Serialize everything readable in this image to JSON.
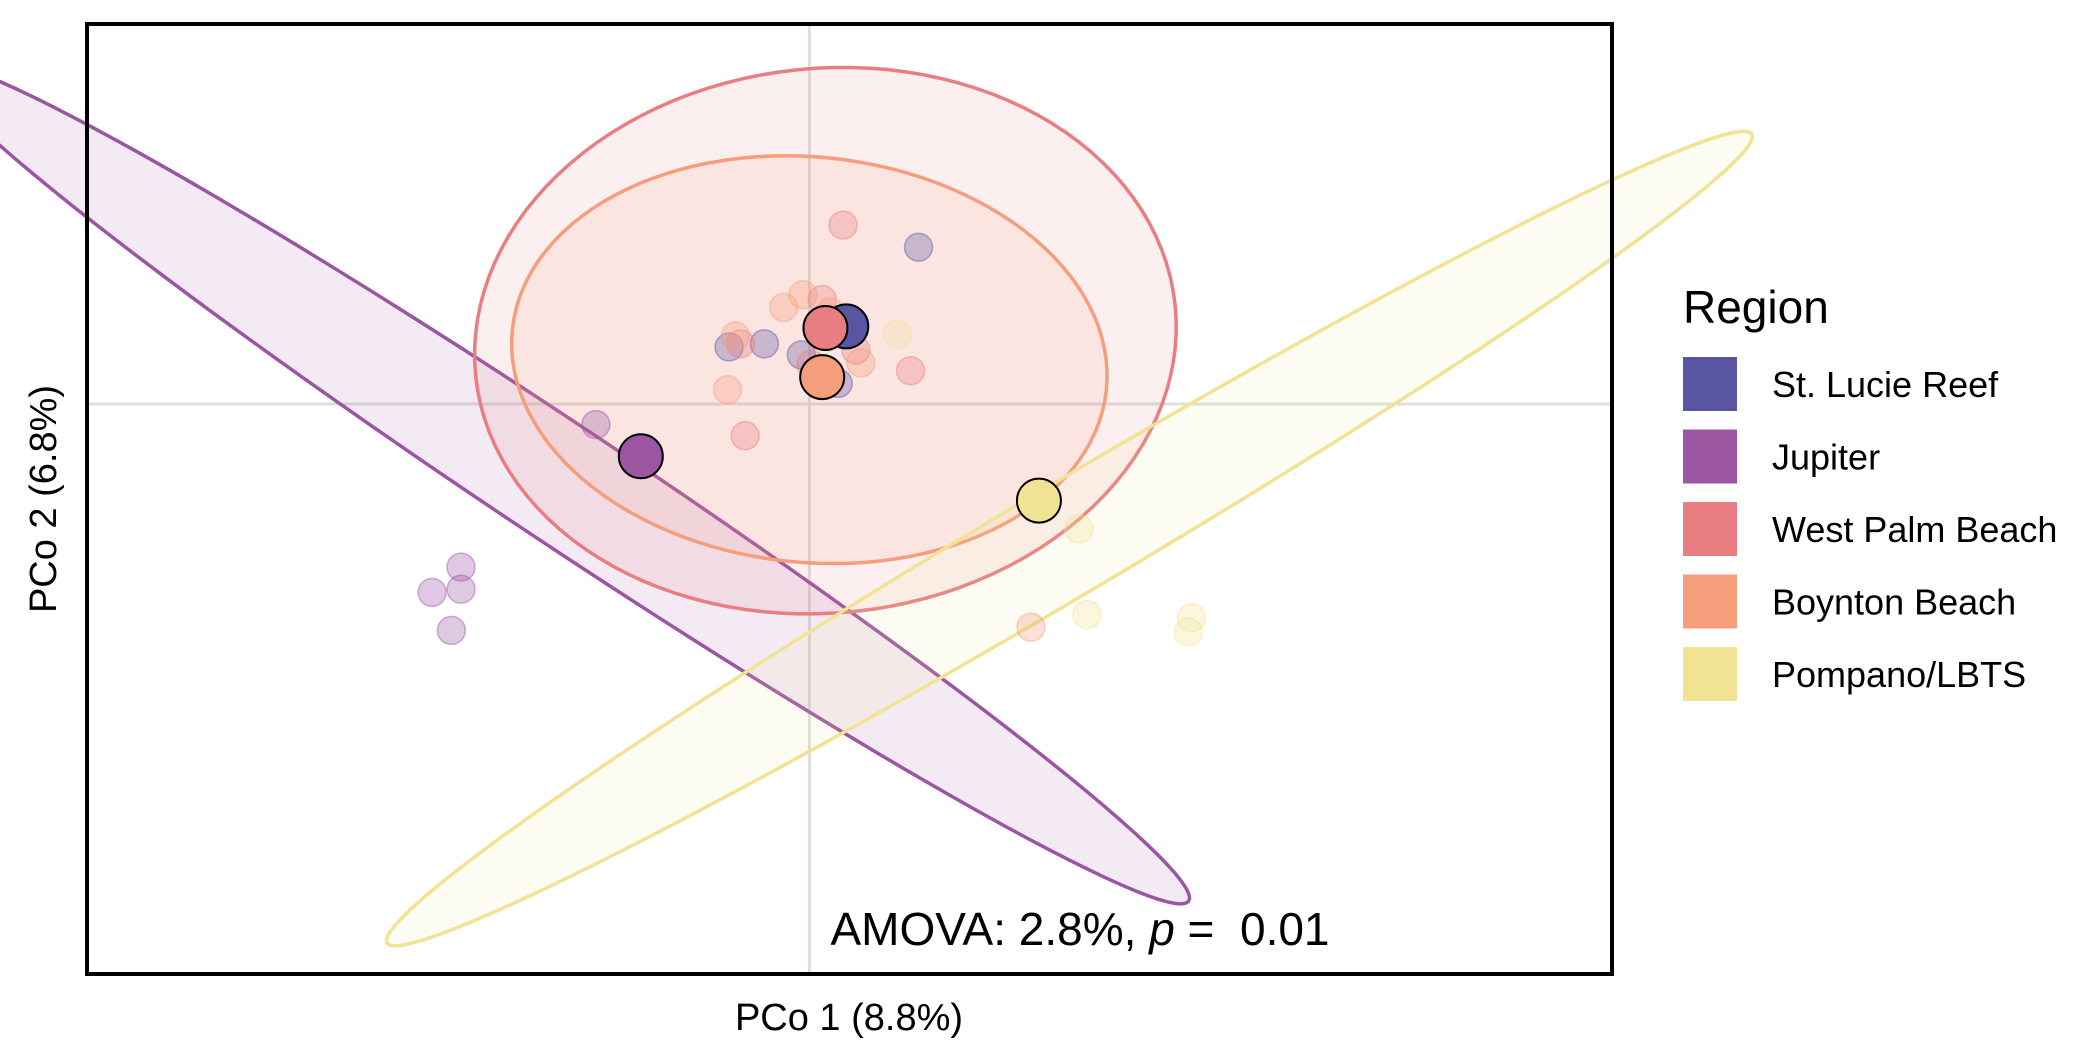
{
  "chart_data": {
    "type": "scatter",
    "title": "",
    "xlabel": "PCo 1 (8.8%)",
    "ylabel": "PCo 2 (6.8%)",
    "xlim": [
      -0.45,
      0.5
    ],
    "ylim": [
      -0.36,
      0.24
    ],
    "grid": {
      "zero_lines": true,
      "major": false
    },
    "legend": {
      "title": "Region",
      "placement": "right"
    },
    "annotation": {
      "prefix": "AMOVA: 2.8%, ",
      "p_symbol": "p",
      "equals": " =  0.01"
    },
    "series": [
      {
        "name": "St. Lucie Reef",
        "color": "#5a55a3",
        "centroid": {
          "x": 0.023,
          "y": 0.049
        },
        "points": [
          {
            "x": 0.068,
            "y": 0.099
          },
          {
            "x": -0.028,
            "y": 0.038
          },
          {
            "x": -0.05,
            "y": 0.036
          },
          {
            "x": -0.005,
            "y": 0.031
          },
          {
            "x": 0.012,
            "y": 0.047
          },
          {
            "x": 0.018,
            "y": 0.013
          }
        ],
        "ellipse": null
      },
      {
        "name": "Jupiter",
        "color": "#9b55a3",
        "centroid": {
          "x": -0.105,
          "y": -0.033
        },
        "points": [
          {
            "x": -0.133,
            "y": -0.013
          },
          {
            "x": -0.217,
            "y": -0.103
          },
          {
            "x": -0.235,
            "y": -0.119
          },
          {
            "x": -0.217,
            "y": -0.117
          },
          {
            "x": -0.223,
            "y": -0.143
          }
        ],
        "ellipse": {
          "cx": -0.155,
          "cy": -0.05,
          "rx": 0.472,
          "ry": 0.037,
          "angle_deg": -34
        }
      },
      {
        "name": "West Palm Beach",
        "color": "#e87d82",
        "centroid": {
          "x": 0.01,
          "y": 0.048
        },
        "points": [
          {
            "x": 0.021,
            "y": 0.113
          },
          {
            "x": -0.043,
            "y": 0.038
          },
          {
            "x": 0.063,
            "y": 0.021
          },
          {
            "x": -0.04,
            "y": -0.02
          },
          {
            "x": 0.029,
            "y": 0.034
          },
          {
            "x": 0.008,
            "y": 0.066
          },
          {
            "x": 0.001,
            "y": 0.025
          }
        ],
        "ellipse": {
          "cx": 0.01,
          "cy": 0.04,
          "rx": 0.172,
          "ry": 0.219,
          "angle_deg": -84
        }
      },
      {
        "name": "Boynton Beach",
        "color": "#f59e7c",
        "centroid": {
          "x": 0.008,
          "y": 0.017
        },
        "points": [
          {
            "x": -0.016,
            "y": 0.061
          },
          {
            "x": -0.004,
            "y": 0.069
          },
          {
            "x": -0.046,
            "y": 0.043
          },
          {
            "x": -0.051,
            "y": 0.009
          },
          {
            "x": 0.032,
            "y": 0.026
          },
          {
            "x": 0.013,
            "y": 0.058
          },
          {
            "x": 0.138,
            "y": -0.141
          }
        ],
        "ellipse": {
          "cx": 0.0,
          "cy": 0.028,
          "rx": 0.186,
          "ry": 0.128,
          "angle_deg": -6
        }
      },
      {
        "name": "Pompano/LBTS",
        "color": "#f2e394",
        "centroid": {
          "x": 0.143,
          "y": -0.061
        },
        "points": [
          {
            "x": 0.168,
            "y": -0.079
          },
          {
            "x": 0.173,
            "y": -0.133
          },
          {
            "x": 0.238,
            "y": -0.135
          },
          {
            "x": 0.236,
            "y": -0.144
          },
          {
            "x": 0.055,
            "y": 0.044
          }
        ],
        "ellipse": {
          "cx": 0.162,
          "cy": -0.085,
          "rx": 0.496,
          "ry": 0.035,
          "angle_deg": 31
        }
      }
    ]
  }
}
